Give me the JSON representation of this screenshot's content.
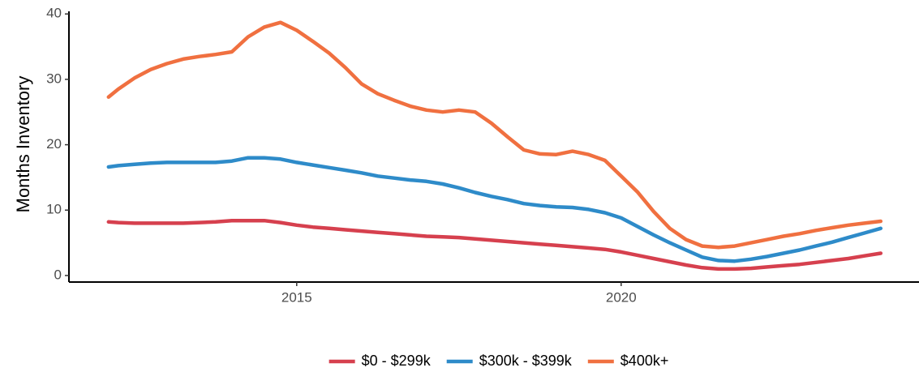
{
  "chart_data": {
    "type": "line",
    "y_label": "Months Inventory",
    "x": [
      2012.1,
      2012.25,
      2012.5,
      2012.75,
      2013.0,
      2013.25,
      2013.5,
      2013.75,
      2014.0,
      2014.25,
      2014.5,
      2014.75,
      2015.0,
      2015.25,
      2015.5,
      2015.75,
      2016.0,
      2016.25,
      2016.5,
      2016.75,
      2017.0,
      2017.25,
      2017.5,
      2017.75,
      2018.0,
      2018.25,
      2018.5,
      2018.75,
      2019.0,
      2019.25,
      2019.5,
      2019.75,
      2020.0,
      2020.25,
      2020.5,
      2020.75,
      2021.0,
      2021.25,
      2021.5,
      2021.75,
      2022.0,
      2022.25,
      2022.5,
      2022.75,
      2023.0,
      2023.25,
      2023.5,
      2023.75,
      2024.0
    ],
    "series": [
      {
        "name": "$0 - $299k",
        "color": "#d6404e",
        "values": [
          8.2,
          8.1,
          8.0,
          8.0,
          8.0,
          8.0,
          8.1,
          8.2,
          8.4,
          8.4,
          8.4,
          8.1,
          7.7,
          7.4,
          7.2,
          7.0,
          6.8,
          6.6,
          6.4,
          6.2,
          6.0,
          5.9,
          5.8,
          5.6,
          5.4,
          5.2,
          5.0,
          4.8,
          4.6,
          4.4,
          4.2,
          4.0,
          3.6,
          3.1,
          2.6,
          2.1,
          1.6,
          1.2,
          1.0,
          1.0,
          1.1,
          1.3,
          1.5,
          1.7,
          2.0,
          2.3,
          2.6,
          3.0,
          3.4
        ]
      },
      {
        "name": "$300k - $399k",
        "color": "#2e8bc9",
        "values": [
          16.6,
          16.8,
          17.0,
          17.2,
          17.3,
          17.3,
          17.3,
          17.3,
          17.5,
          18.0,
          18.0,
          17.8,
          17.3,
          16.9,
          16.5,
          16.1,
          15.7,
          15.2,
          14.9,
          14.6,
          14.4,
          14.0,
          13.4,
          12.7,
          12.1,
          11.6,
          11.0,
          10.7,
          10.5,
          10.4,
          10.1,
          9.6,
          8.8,
          7.5,
          6.2,
          5.0,
          3.9,
          2.8,
          2.3,
          2.2,
          2.5,
          2.9,
          3.4,
          3.9,
          4.5,
          5.1,
          5.8,
          6.5,
          7.2
        ]
      },
      {
        "name": "$400k+",
        "color": "#f07040",
        "values": [
          27.3,
          28.5,
          30.2,
          31.5,
          32.4,
          33.1,
          33.5,
          33.8,
          34.2,
          36.5,
          38.0,
          38.7,
          37.5,
          35.8,
          34.0,
          31.8,
          29.3,
          27.8,
          26.8,
          25.9,
          25.3,
          25.0,
          25.3,
          25.0,
          23.3,
          21.2,
          19.2,
          18.6,
          18.5,
          19.0,
          18.5,
          17.6,
          15.2,
          12.8,
          9.8,
          7.2,
          5.5,
          4.5,
          4.3,
          4.5,
          5.0,
          5.5,
          6.0,
          6.4,
          6.9,
          7.3,
          7.7,
          8.0,
          8.3
        ]
      }
    ],
    "xlim": [
      2011.49,
      2024.59
    ],
    "xticks": [
      2015,
      2020
    ],
    "ylim": [
      -1,
      40.4
    ],
    "yticks": [
      0,
      10,
      20,
      30,
      40
    ],
    "legend": "bottom"
  }
}
